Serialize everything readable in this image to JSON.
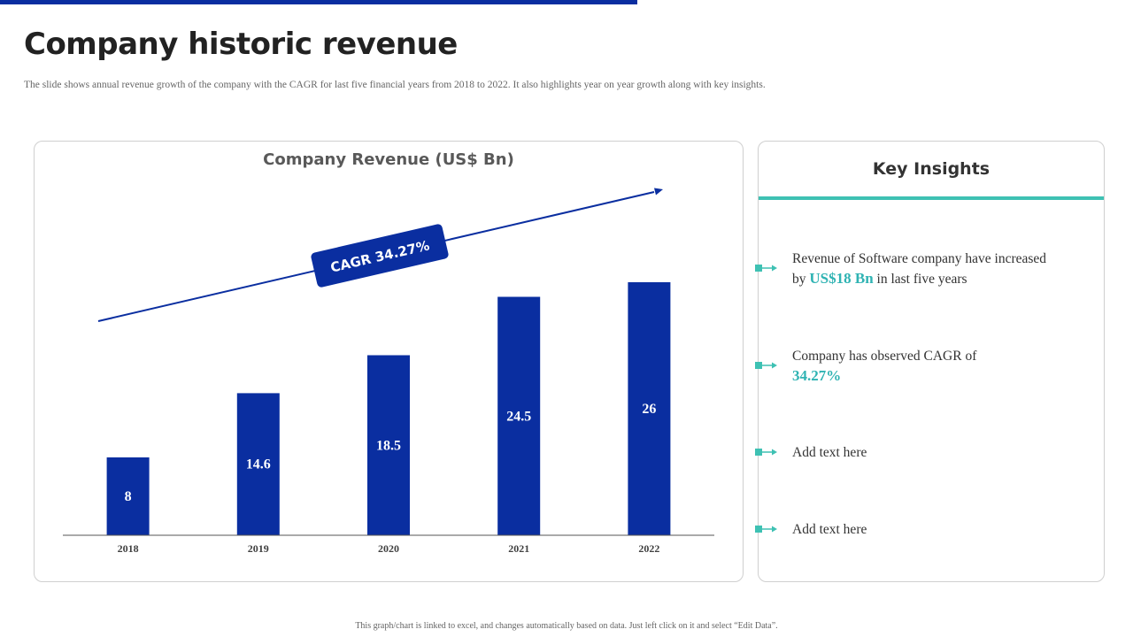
{
  "slide": {
    "title": "Company historic revenue",
    "subtitle": "The slide shows annual revenue growth of the company with the CAGR for last five financial  years from 2018 to 2022. It also highlights  year on year growth along with key insights.",
    "footer": "This graph/chart is linked to excel, and changes automatically based on data. Just left click on it and select “Edit Data”."
  },
  "chart_data": {
    "type": "bar",
    "title": "Company Revenue (US$ Bn)",
    "categories": [
      "2018",
      "2019",
      "2020",
      "2021",
      "2022"
    ],
    "values": [
      8,
      14.6,
      18.5,
      24.5,
      26
    ],
    "value_labels": [
      "8",
      "14.6",
      "18.5",
      "24.5",
      "26"
    ],
    "ylim": [
      0,
      30
    ],
    "grid": false,
    "xlabel": "",
    "ylabel": "",
    "bar_color": "#0a2ea0",
    "annotation": "CAGR 34.27%"
  },
  "insights": {
    "title": "Key Insights",
    "items": [
      {
        "pre": "Revenue of Software company have increased by ",
        "highlight": "US$18 Bn",
        "post": " in last five  years"
      },
      {
        "pre": "Company has observed CAGR of ",
        "highlight": "34.27%",
        "post": ""
      },
      {
        "pre": "Add text  here",
        "highlight": "",
        "post": ""
      },
      {
        "pre": "Add text  here",
        "highlight": "",
        "post": ""
      }
    ]
  },
  "colors": {
    "accent_blue": "#0a2ea0",
    "accent_teal": "#3ec1b3"
  }
}
